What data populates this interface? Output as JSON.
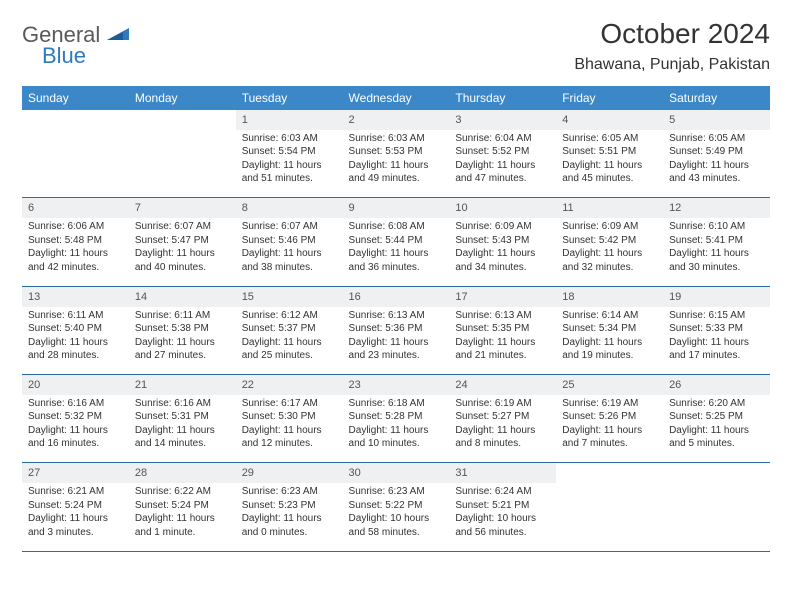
{
  "logo": {
    "word1": "General",
    "word2": "Blue"
  },
  "title": "October 2024",
  "location": "Bhawana, Punjab, Pakistan",
  "colors": {
    "header_bg": "#3b87c8",
    "header_text": "#ffffff",
    "daynum_bg": "#eef0f2",
    "border": "#2f6aa0",
    "logo_grey": "#5a5a5a",
    "logo_blue": "#2f7abf"
  },
  "dayHeaders": [
    "Sunday",
    "Monday",
    "Tuesday",
    "Wednesday",
    "Thursday",
    "Friday",
    "Saturday"
  ],
  "weeks": [
    [
      null,
      null,
      {
        "n": "1",
        "sr": "Sunrise: 6:03 AM",
        "ss": "Sunset: 5:54 PM",
        "dl": "Daylight: 11 hours and 51 minutes."
      },
      {
        "n": "2",
        "sr": "Sunrise: 6:03 AM",
        "ss": "Sunset: 5:53 PM",
        "dl": "Daylight: 11 hours and 49 minutes."
      },
      {
        "n": "3",
        "sr": "Sunrise: 6:04 AM",
        "ss": "Sunset: 5:52 PM",
        "dl": "Daylight: 11 hours and 47 minutes."
      },
      {
        "n": "4",
        "sr": "Sunrise: 6:05 AM",
        "ss": "Sunset: 5:51 PM",
        "dl": "Daylight: 11 hours and 45 minutes."
      },
      {
        "n": "5",
        "sr": "Sunrise: 6:05 AM",
        "ss": "Sunset: 5:49 PM",
        "dl": "Daylight: 11 hours and 43 minutes."
      }
    ],
    [
      {
        "n": "6",
        "sr": "Sunrise: 6:06 AM",
        "ss": "Sunset: 5:48 PM",
        "dl": "Daylight: 11 hours and 42 minutes."
      },
      {
        "n": "7",
        "sr": "Sunrise: 6:07 AM",
        "ss": "Sunset: 5:47 PM",
        "dl": "Daylight: 11 hours and 40 minutes."
      },
      {
        "n": "8",
        "sr": "Sunrise: 6:07 AM",
        "ss": "Sunset: 5:46 PM",
        "dl": "Daylight: 11 hours and 38 minutes."
      },
      {
        "n": "9",
        "sr": "Sunrise: 6:08 AM",
        "ss": "Sunset: 5:44 PM",
        "dl": "Daylight: 11 hours and 36 minutes."
      },
      {
        "n": "10",
        "sr": "Sunrise: 6:09 AM",
        "ss": "Sunset: 5:43 PM",
        "dl": "Daylight: 11 hours and 34 minutes."
      },
      {
        "n": "11",
        "sr": "Sunrise: 6:09 AM",
        "ss": "Sunset: 5:42 PM",
        "dl": "Daylight: 11 hours and 32 minutes."
      },
      {
        "n": "12",
        "sr": "Sunrise: 6:10 AM",
        "ss": "Sunset: 5:41 PM",
        "dl": "Daylight: 11 hours and 30 minutes."
      }
    ],
    [
      {
        "n": "13",
        "sr": "Sunrise: 6:11 AM",
        "ss": "Sunset: 5:40 PM",
        "dl": "Daylight: 11 hours and 28 minutes."
      },
      {
        "n": "14",
        "sr": "Sunrise: 6:11 AM",
        "ss": "Sunset: 5:38 PM",
        "dl": "Daylight: 11 hours and 27 minutes."
      },
      {
        "n": "15",
        "sr": "Sunrise: 6:12 AM",
        "ss": "Sunset: 5:37 PM",
        "dl": "Daylight: 11 hours and 25 minutes."
      },
      {
        "n": "16",
        "sr": "Sunrise: 6:13 AM",
        "ss": "Sunset: 5:36 PM",
        "dl": "Daylight: 11 hours and 23 minutes."
      },
      {
        "n": "17",
        "sr": "Sunrise: 6:13 AM",
        "ss": "Sunset: 5:35 PM",
        "dl": "Daylight: 11 hours and 21 minutes."
      },
      {
        "n": "18",
        "sr": "Sunrise: 6:14 AM",
        "ss": "Sunset: 5:34 PM",
        "dl": "Daylight: 11 hours and 19 minutes."
      },
      {
        "n": "19",
        "sr": "Sunrise: 6:15 AM",
        "ss": "Sunset: 5:33 PM",
        "dl": "Daylight: 11 hours and 17 minutes."
      }
    ],
    [
      {
        "n": "20",
        "sr": "Sunrise: 6:16 AM",
        "ss": "Sunset: 5:32 PM",
        "dl": "Daylight: 11 hours and 16 minutes."
      },
      {
        "n": "21",
        "sr": "Sunrise: 6:16 AM",
        "ss": "Sunset: 5:31 PM",
        "dl": "Daylight: 11 hours and 14 minutes."
      },
      {
        "n": "22",
        "sr": "Sunrise: 6:17 AM",
        "ss": "Sunset: 5:30 PM",
        "dl": "Daylight: 11 hours and 12 minutes."
      },
      {
        "n": "23",
        "sr": "Sunrise: 6:18 AM",
        "ss": "Sunset: 5:28 PM",
        "dl": "Daylight: 11 hours and 10 minutes."
      },
      {
        "n": "24",
        "sr": "Sunrise: 6:19 AM",
        "ss": "Sunset: 5:27 PM",
        "dl": "Daylight: 11 hours and 8 minutes."
      },
      {
        "n": "25",
        "sr": "Sunrise: 6:19 AM",
        "ss": "Sunset: 5:26 PM",
        "dl": "Daylight: 11 hours and 7 minutes."
      },
      {
        "n": "26",
        "sr": "Sunrise: 6:20 AM",
        "ss": "Sunset: 5:25 PM",
        "dl": "Daylight: 11 hours and 5 minutes."
      }
    ],
    [
      {
        "n": "27",
        "sr": "Sunrise: 6:21 AM",
        "ss": "Sunset: 5:24 PM",
        "dl": "Daylight: 11 hours and 3 minutes."
      },
      {
        "n": "28",
        "sr": "Sunrise: 6:22 AM",
        "ss": "Sunset: 5:24 PM",
        "dl": "Daylight: 11 hours and 1 minute."
      },
      {
        "n": "29",
        "sr": "Sunrise: 6:23 AM",
        "ss": "Sunset: 5:23 PM",
        "dl": "Daylight: 11 hours and 0 minutes."
      },
      {
        "n": "30",
        "sr": "Sunrise: 6:23 AM",
        "ss": "Sunset: 5:22 PM",
        "dl": "Daylight: 10 hours and 58 minutes."
      },
      {
        "n": "31",
        "sr": "Sunrise: 6:24 AM",
        "ss": "Sunset: 5:21 PM",
        "dl": "Daylight: 10 hours and 56 minutes."
      },
      null,
      null
    ]
  ]
}
